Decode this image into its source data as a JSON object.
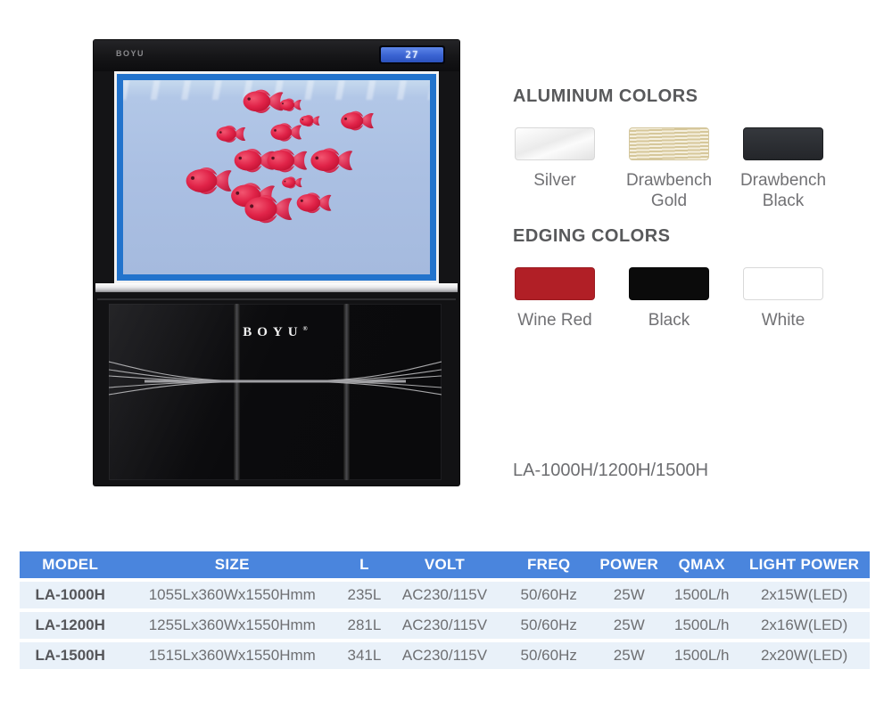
{
  "product": {
    "brand_top": "BOYU",
    "brand_cabinet": "BOYU",
    "lcd_value": "27",
    "fish": [
      [
        153,
        24,
        1.1
      ],
      [
        186,
        28,
        0.6
      ],
      [
        208,
        46,
        0.55
      ],
      [
        260,
        46,
        0.9
      ],
      [
        118,
        61,
        0.8
      ],
      [
        180,
        59,
        0.85
      ],
      [
        143,
        91,
        1.1
      ],
      [
        180,
        91,
        1.1
      ],
      [
        230,
        91,
        1.15
      ],
      [
        91,
        114,
        1.25
      ],
      [
        188,
        116,
        0.55
      ],
      [
        141,
        131,
        1.2
      ],
      [
        158,
        146,
        1.3
      ],
      [
        211,
        139,
        0.95
      ]
    ],
    "fish_color_core": "#f25570",
    "fish_color_deep": "#bd1031",
    "tank_border_color": "#2273cc"
  },
  "aluminum_colors": {
    "heading": "ALUMINUM COLORS",
    "swatches": [
      {
        "label": "Silver",
        "finish": "silver",
        "color": "#f4f4f4"
      },
      {
        "label": "Drawbench Gold",
        "finish": "gold",
        "color": "#e8dcb6"
      },
      {
        "label": "Drawbench Black",
        "finish": "dark",
        "color": "#2b2e33"
      }
    ]
  },
  "edging_colors": {
    "heading": "EDGING COLORS",
    "swatches": [
      {
        "label": "Wine Red",
        "finish": "flat",
        "color": "#b11f26"
      },
      {
        "label": "Black",
        "finish": "flat",
        "color": "#0b0b0b"
      },
      {
        "label": "White",
        "finish": "flat-white",
        "color": "#ffffff"
      }
    ]
  },
  "model_line": "LA-1000H/1200H/1500H",
  "spec_table": {
    "header_bg": "#4a85dd",
    "row_bg": "#e9f1f9",
    "headers": [
      "MODEL",
      "SIZE",
      "L",
      "VOLT",
      "FREQ",
      "POWER",
      "QMAX",
      "LIGHT POWER"
    ],
    "col_widths_pct": [
      11.9,
      26.2,
      4.9,
      14.0,
      10.5,
      8.4,
      8.7,
      15.4
    ],
    "rows": [
      [
        "LA-1000H",
        "1055Lx360Wx1550Hmm",
        "235L",
        "AC230/115V",
        "50/60Hz",
        "25W",
        "1500L/h",
        "2x15W(LED)"
      ],
      [
        "LA-1200H",
        "1255Lx360Wx1550Hmm",
        "281L",
        "AC230/115V",
        "50/60Hz",
        "25W",
        "1500L/h",
        "2x16W(LED)"
      ],
      [
        "LA-1500H",
        "1515Lx360Wx1550Hmm",
        "341L",
        "AC230/115V",
        "50/60Hz",
        "25W",
        "1500L/h",
        "2x20W(LED)"
      ]
    ]
  }
}
